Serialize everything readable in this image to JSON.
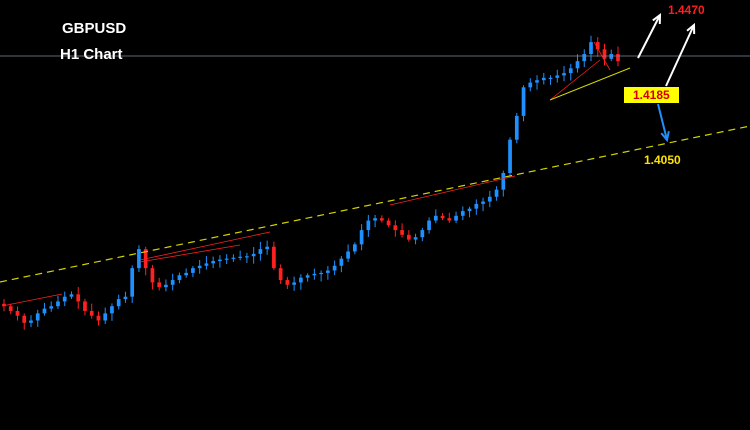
{
  "header": {
    "symbol": "GBPUSD",
    "timeframe": "H1 Chart"
  },
  "levels": {
    "target": "1.4470",
    "current": "1.4185",
    "support": "1.4050"
  },
  "colors": {
    "background": "#000000",
    "bull_candle": "#1e90ff",
    "bear_candle": "#ff2020",
    "trendline_dashed": "#d4d400",
    "trendline_red": "#ff2020",
    "arrow_up": "#ffffff",
    "arrow_down": "#1e90ff",
    "target_text": "#ff1e1e",
    "current_badge_bg": "#ffff00",
    "current_badge_text": "#d40000",
    "support_text": "#ffe100"
  },
  "chart_data": {
    "type": "candlestick",
    "symbol": "GBPUSD",
    "timeframe": "H1",
    "y_range": [
      1.37,
      1.448
    ],
    "close_path": [
      1.388,
      1.387,
      1.386,
      1.3845,
      1.385,
      1.3865,
      1.3875,
      1.388,
      1.389,
      1.39,
      1.3905,
      1.389,
      1.387,
      1.386,
      1.385,
      1.3865,
      1.388,
      1.3895,
      1.39,
      1.396,
      1.4,
      1.396,
      1.393,
      1.392,
      1.3925,
      1.3935,
      1.3945,
      1.395,
      1.396,
      1.3965,
      1.397,
      1.3975,
      1.3978,
      1.398,
      1.3982,
      1.3984,
      1.3985,
      1.399,
      1.4,
      1.4005,
      1.396,
      1.3935,
      1.3925,
      1.393,
      1.394,
      1.3945,
      1.3948,
      1.395,
      1.3955,
      1.3965,
      1.398,
      1.3995,
      1.401,
      1.404,
      1.406,
      1.4065,
      1.406,
      1.405,
      1.404,
      1.403,
      1.402,
      1.4025,
      1.404,
      1.406,
      1.407,
      1.4065,
      1.406,
      1.407,
      1.408,
      1.4085,
      1.4095,
      1.41,
      1.411,
      1.4125,
      1.416,
      1.423,
      1.428,
      1.434,
      1.435,
      1.4355,
      1.436,
      1.436,
      1.4365,
      1.437,
      1.438,
      1.4395,
      1.441,
      1.4435,
      1.442,
      1.44,
      1.441,
      1.4395
    ],
    "annotations": [
      {
        "label": "1.4470",
        "role": "target"
      },
      {
        "label": "1.4185",
        "role": "current"
      },
      {
        "label": "1.4050",
        "role": "support"
      }
    ]
  }
}
